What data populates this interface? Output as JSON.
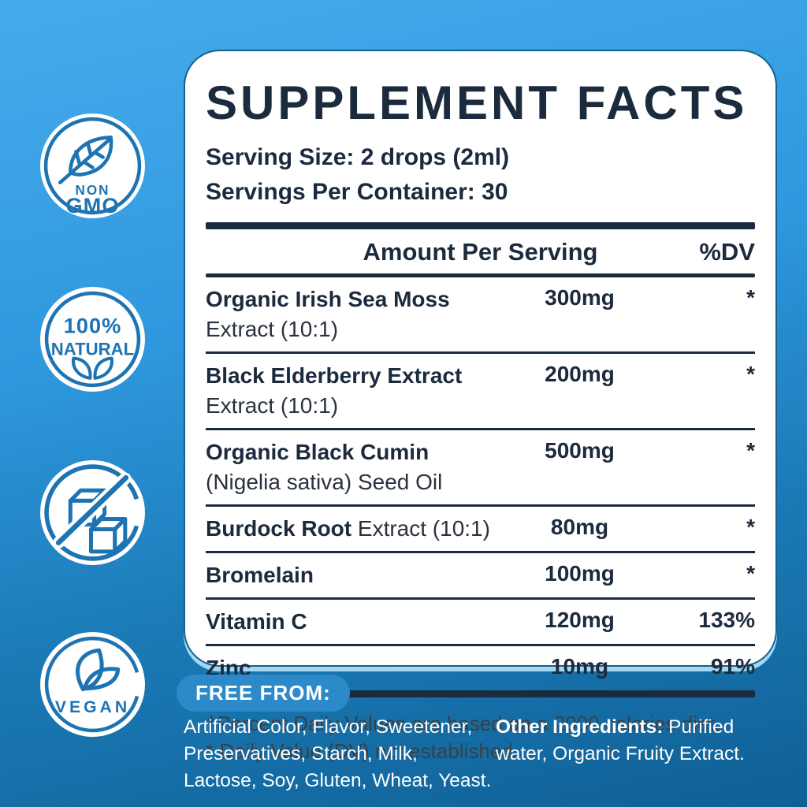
{
  "colors": {
    "background_top": "#46ABEC",
    "background_bottom": "#0F6095",
    "card_bg": "#FFFFFF",
    "navy_text": "#1C2A3D",
    "badge_blue": "#1E74B2",
    "pill_bg": "#2C8ACB",
    "footnote_text": "#3A4048"
  },
  "badges": {
    "non_gmo": {
      "icon": "leaf-icon",
      "line1": "NON",
      "line2": "GMO"
    },
    "natural": {
      "icon": "two-leaves-icon",
      "line1": "100%",
      "line2": "NATURAL"
    },
    "sugar_free": {
      "icon": "no-sugar-cubes-icon"
    },
    "vegan": {
      "icon": "two-leaves-icon",
      "label": "VEGAN"
    }
  },
  "panel": {
    "title": "SUPPLEMENT FACTS",
    "serving_size": "Serving Size: 2 drops (2ml)",
    "servings_per_container": "Servings Per Container: 30",
    "columns": {
      "amount": "Amount Per Serving",
      "dv": "%DV"
    },
    "rows": [
      {
        "bold": "Organic Irish Sea Moss",
        "regular": "Extract (10:1)",
        "inline": false,
        "amount": "300mg",
        "dv": "*"
      },
      {
        "bold": "Black Elderberry Extract",
        "regular": "Extract (10:1)",
        "inline": false,
        "amount": "200mg",
        "dv": "*"
      },
      {
        "bold": "Organic Black Cumin",
        "regular": "(Nigelia sativa) Seed Oil",
        "inline": false,
        "amount": "500mg",
        "dv": "*"
      },
      {
        "bold": "Burdock Root",
        "regular": "Extract (10:1)",
        "inline": true,
        "amount": "80mg",
        "dv": "*"
      },
      {
        "bold": "Bromelain",
        "regular": "",
        "inline": false,
        "amount": "100mg",
        "dv": "*"
      },
      {
        "bold": "Vitamin C",
        "regular": "",
        "inline": false,
        "amount": "120mg",
        "dv": "133%"
      },
      {
        "bold": "Zinc",
        "regular": "",
        "inline": false,
        "amount": "10mg",
        "dv": "91%"
      }
    ],
    "footnotes": [
      "†Percent Daily Values are based on a 2000 calories diet.",
      "* Daily Value (DV) not established."
    ]
  },
  "footer": {
    "free_from_label": "FREE FROM:",
    "free_from_list": "Artificial Color, Flavor, Sweetener, Preservatives, Starch, Milk, Lactose, Soy, Gluten, Wheat, Yeast.",
    "other_ingredients_label": "Other Ingredients:",
    "other_ingredients_text": " Purified water, Organic Fruity Extract."
  }
}
